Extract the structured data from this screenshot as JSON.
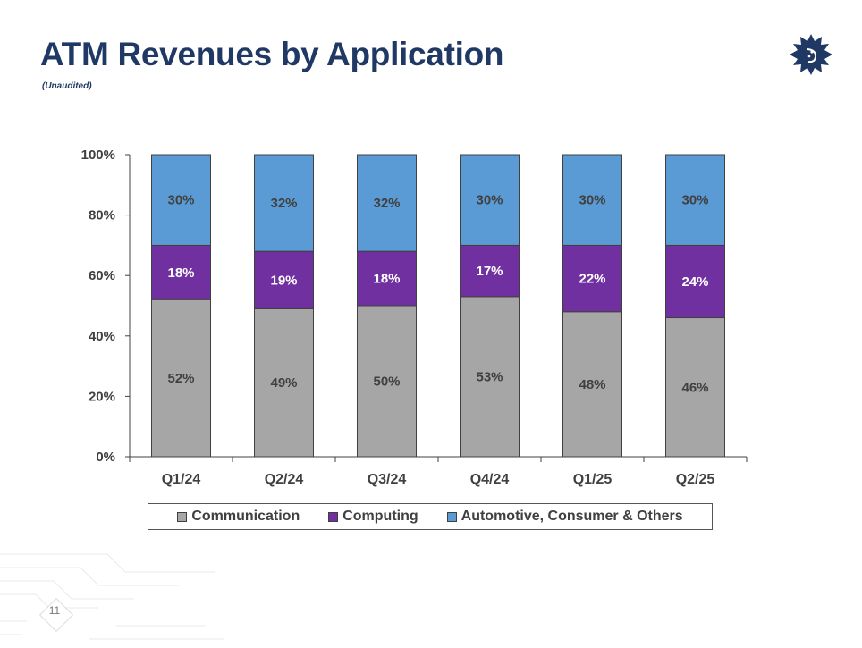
{
  "title": "ATM Revenues by Application",
  "subtitle": "(Unaudited)",
  "logo_icon": "sun-face-logo-icon",
  "page_number": "11",
  "colors": {
    "title": "#1f3864",
    "communication": "#a6a6a6",
    "computing": "#7030a0",
    "automotive": "#5b9bd5"
  },
  "chart_data": {
    "type": "bar",
    "stacked": true,
    "categories": [
      "Q1/24",
      "Q2/24",
      "Q3/24",
      "Q4/24",
      "Q1/25",
      "Q2/25"
    ],
    "series": [
      {
        "name": "Communication",
        "values": [
          52,
          49,
          50,
          53,
          48,
          46
        ],
        "labels": [
          "52%",
          "49%",
          "50%",
          "53%",
          "48%",
          "46%"
        ],
        "color": "#a6a6a6",
        "label_color": "#404040"
      },
      {
        "name": "Computing",
        "values": [
          18,
          19,
          18,
          17,
          22,
          24
        ],
        "labels": [
          "18%",
          "19%",
          "18%",
          "17%",
          "22%",
          "24%"
        ],
        "color": "#7030a0",
        "label_color": "#ffffff"
      },
      {
        "name": "Automotive, Consumer & Others",
        "values": [
          30,
          32,
          32,
          30,
          30,
          30
        ],
        "labels": [
          "30%",
          "32%",
          "32%",
          "30%",
          "30%",
          "30%"
        ],
        "color": "#5b9bd5",
        "label_color": "#404040"
      }
    ],
    "ylim": [
      0,
      100
    ],
    "yticks": [
      "0%",
      "20%",
      "40%",
      "60%",
      "80%",
      "100%"
    ],
    "grid": false,
    "legend": "bottom"
  }
}
